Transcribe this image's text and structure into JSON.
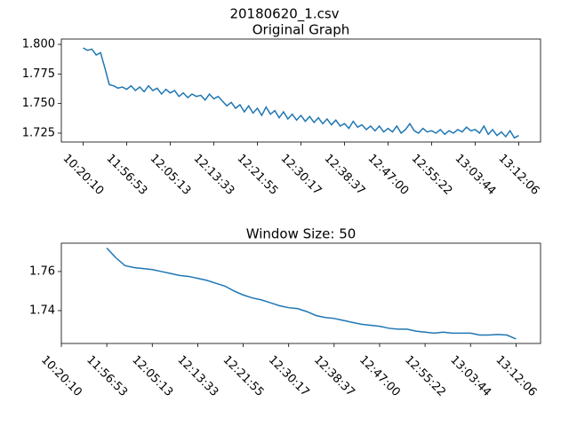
{
  "figure_title": "20180620_1.csv",
  "chart_data": [
    {
      "type": "line",
      "title": "Original Graph",
      "color": "#1f77b4",
      "x": [
        0,
        5,
        10,
        15,
        20,
        25,
        30,
        35,
        40,
        45,
        50,
        55,
        60,
        65,
        70,
        75,
        80,
        85,
        90,
        95,
        100,
        105,
        110,
        115,
        120,
        125,
        130,
        135,
        140,
        145,
        150,
        155,
        160,
        165,
        170,
        175,
        180,
        185,
        190,
        195,
        200,
        205,
        210,
        215,
        220,
        225,
        230,
        235,
        240,
        245,
        250,
        255,
        260,
        265,
        270,
        275,
        280,
        285,
        290,
        295,
        300,
        305,
        310,
        315,
        320,
        325,
        330,
        335,
        340,
        345,
        350,
        355,
        360,
        365,
        370,
        375,
        380,
        385,
        390,
        395,
        400,
        405,
        410,
        415,
        420,
        425,
        430,
        435,
        440,
        445,
        450,
        455,
        460,
        465,
        470,
        475,
        480,
        485,
        490,
        495,
        500
      ],
      "values": [
        1.797,
        1.795,
        1.796,
        1.791,
        1.793,
        1.78,
        1.766,
        1.765,
        1.763,
        1.764,
        1.762,
        1.765,
        1.761,
        1.764,
        1.76,
        1.765,
        1.761,
        1.763,
        1.758,
        1.762,
        1.759,
        1.761,
        1.756,
        1.759,
        1.755,
        1.758,
        1.756,
        1.757,
        1.753,
        1.758,
        1.754,
        1.756,
        1.752,
        1.748,
        1.751,
        1.746,
        1.749,
        1.743,
        1.748,
        1.742,
        1.746,
        1.74,
        1.747,
        1.741,
        1.744,
        1.738,
        1.743,
        1.737,
        1.741,
        1.736,
        1.74,
        1.735,
        1.739,
        1.734,
        1.738,
        1.733,
        1.737,
        1.732,
        1.736,
        1.731,
        1.733,
        1.729,
        1.735,
        1.73,
        1.732,
        1.728,
        1.731,
        1.727,
        1.731,
        1.726,
        1.729,
        1.726,
        1.731,
        1.725,
        1.728,
        1.733,
        1.727,
        1.725,
        1.729,
        1.726,
        1.727,
        1.725,
        1.728,
        1.724,
        1.727,
        1.725,
        1.728,
        1.726,
        1.73,
        1.727,
        1.728,
        1.725,
        1.731,
        1.724,
        1.728,
        1.723,
        1.726,
        1.722,
        1.727,
        1.721,
        1.723
      ],
      "xlim": [
        -25,
        525
      ],
      "ylim": [
        1.7175,
        1.8045
      ],
      "xticks": [
        {
          "value": 0,
          "label": "10:20:10"
        },
        {
          "value": 50,
          "label": "11:56:53"
        },
        {
          "value": 100,
          "label": "12:05:13"
        },
        {
          "value": 150,
          "label": "12:13:33"
        },
        {
          "value": 200,
          "label": "12:21:55"
        },
        {
          "value": 250,
          "label": "12:30:17"
        },
        {
          "value": 300,
          "label": "12:38:37"
        },
        {
          "value": 350,
          "label": "12:47:00"
        },
        {
          "value": 400,
          "label": "12:55:22"
        },
        {
          "value": 450,
          "label": "13:03:44"
        },
        {
          "value": 500,
          "label": "13:12:06"
        }
      ],
      "yticks": [
        {
          "value": 1.8,
          "label": "1.800"
        },
        1.775,
        {
          "value": 1.75,
          "label": "1.750"
        },
        1.725
      ]
    },
    {
      "type": "line",
      "title": "Window Size: 50",
      "color": "#1f77b4",
      "x": [
        50,
        60,
        70,
        80,
        90,
        100,
        110,
        120,
        130,
        140,
        150,
        160,
        170,
        180,
        190,
        200,
        210,
        220,
        230,
        240,
        250,
        260,
        270,
        280,
        290,
        300,
        310,
        320,
        330,
        340,
        350,
        360,
        370,
        380,
        390,
        400,
        410,
        420,
        430,
        440,
        450,
        460,
        470,
        480,
        490,
        500
      ],
      "values": [
        1.772,
        1.767,
        1.763,
        1.762,
        1.7615,
        1.761,
        1.76,
        1.759,
        1.758,
        1.7575,
        1.7565,
        1.7555,
        1.754,
        1.7525,
        1.75,
        1.748,
        1.7465,
        1.7455,
        1.744,
        1.7425,
        1.7415,
        1.741,
        1.7395,
        1.7375,
        1.7365,
        1.736,
        1.735,
        1.734,
        1.733,
        1.7325,
        1.732,
        1.731,
        1.7305,
        1.7305,
        1.7295,
        1.729,
        1.7285,
        1.729,
        1.7285,
        1.7285,
        1.7285,
        1.7275,
        1.7275,
        1.7278,
        1.7275,
        1.7255
      ],
      "xlim": [
        0,
        527
      ],
      "ylim": [
        1.7232,
        1.7745
      ],
      "xticks": [
        {
          "value": 0,
          "label": "10:20:10"
        },
        {
          "value": 50,
          "label": "11:56:53"
        },
        {
          "value": 100,
          "label": "12:05:13"
        },
        {
          "value": 150,
          "label": "12:13:33"
        },
        {
          "value": 200,
          "label": "12:21:55"
        },
        {
          "value": 250,
          "label": "12:30:17"
        },
        {
          "value": 300,
          "label": "12:38:37"
        },
        {
          "value": 350,
          "label": "12:47:00"
        },
        {
          "value": 400,
          "label": "12:55:22"
        },
        {
          "value": 450,
          "label": "13:03:44"
        },
        {
          "value": 500,
          "label": "13:12:06"
        }
      ],
      "yticks": [
        1.76,
        1.74
      ]
    }
  ]
}
